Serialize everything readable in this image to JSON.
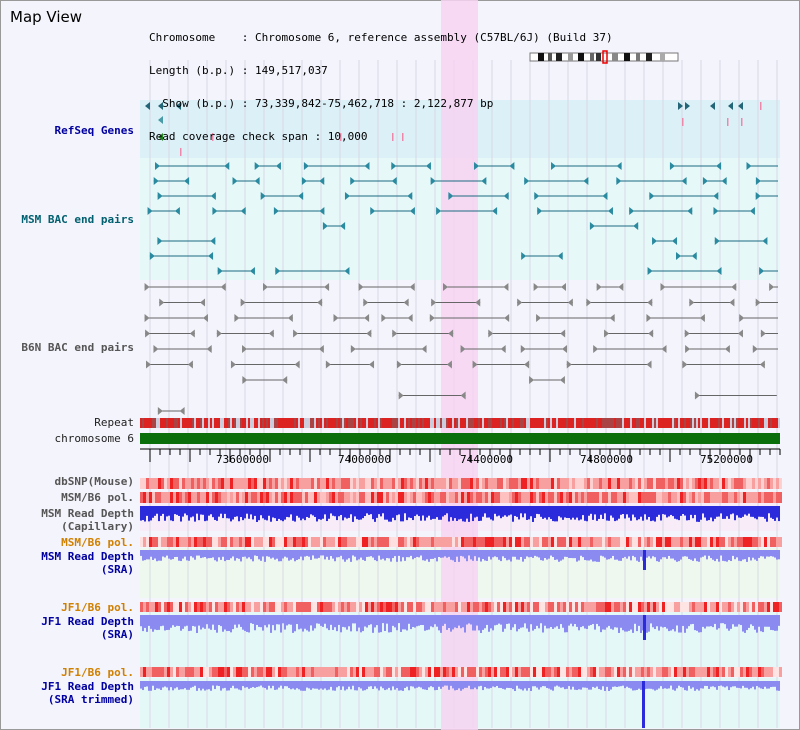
{
  "title": "Map View",
  "info": {
    "chromosome": "Chromosome    : Chromosome 6, reference assembly (C57BL/6J) (Build 37)",
    "length": "Length (b.p.) : 149,517,037",
    "show": "  Show (b.p.) : 73,339,842-75,462,718 : 2,122,877 bp",
    "coverage": "Read coverage check span : 10,000"
  },
  "tracks": {
    "refseq": "RefSeq Genes",
    "msm_bac": "MSM BAC end pairs",
    "b6n_bac": "B6N BAC end pairs",
    "repeat": "Repeat",
    "chromosome": "chromosome 6",
    "dbsnp": "dbSNP(Mouse)",
    "msm_b6_pol": "MSM/B6 pol.",
    "msm_read_depth_cap_1": "MSM Read Depth",
    "msm_read_depth_cap_2": "(Capillary)",
    "msm_b6_pol_sra": "MSM/B6 pol.",
    "msm_read_depth_sra_1": "MSM Read Depth",
    "msm_read_depth_sra_2": "(SRA)",
    "jf1_b6_pol": "JF1/B6 pol.",
    "jf1_read_depth_1": "JF1 Read Depth",
    "jf1_read_depth_2": "(SRA)",
    "jf1_b6_pol_trim": "JF1/B6 pol.",
    "jf1_read_depth_trim_1": "JF1 Read Depth",
    "jf1_read_depth_trim_2": "(SRA trimmed)"
  },
  "axis_ticks": [
    "73600000",
    "74000000",
    "74400000",
    "74800000",
    "75200000"
  ],
  "colors": {
    "highlight": "#f7d4f2",
    "refseq_bg": "#dcf0f8",
    "msm_bg": "#e6f8f8",
    "chromosome_bar": "#0a6e0a",
    "repeat": "#dd2222",
    "read_depth_blue": "#2b2bdc",
    "read_depth_light": "#8a8af0"
  }
}
